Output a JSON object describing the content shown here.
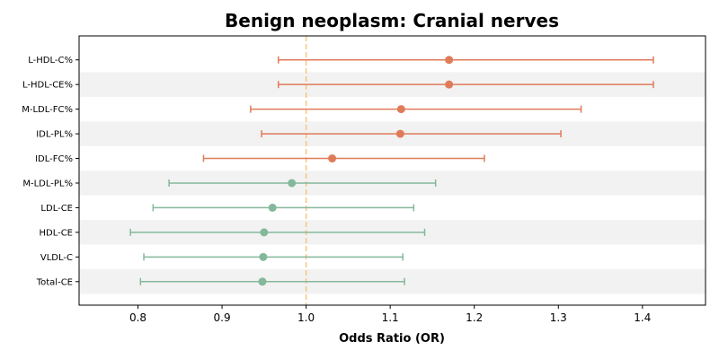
{
  "chart_data": {
    "type": "forest",
    "title": "Benign neoplasm: Cranial nerves",
    "xlabel": "Odds Ratio (OR)",
    "ylabel": "",
    "xlim": [
      0.73,
      1.475
    ],
    "xticks": [
      "0.8",
      "0.9",
      "1.0",
      "1.1",
      "1.2",
      "1.3",
      "1.4"
    ],
    "reference_line": 1.0,
    "grid": false,
    "row_shading": "alternating",
    "colors": {
      "positive": "#e07b5a",
      "negative": "#84b89b",
      "reference": "#f5c77e",
      "band": "#f2f2f2"
    },
    "rows": [
      {
        "label": "L-HDL-C%",
        "or": 1.17,
        "lower": 0.967,
        "upper": 1.413
      },
      {
        "label": "L-HDL-CE%",
        "or": 1.17,
        "lower": 0.967,
        "upper": 1.413
      },
      {
        "label": "M-LDL-FC%",
        "or": 1.113,
        "lower": 0.934,
        "upper": 1.327
      },
      {
        "label": "IDL-PL%",
        "or": 1.112,
        "lower": 0.947,
        "upper": 1.303
      },
      {
        "label": "IDL-FC%",
        "or": 1.031,
        "lower": 0.878,
        "upper": 1.212
      },
      {
        "label": "M-LDL-PL%",
        "or": 0.983,
        "lower": 0.837,
        "upper": 1.154
      },
      {
        "label": "LDL-CE",
        "or": 0.96,
        "lower": 0.818,
        "upper": 1.128
      },
      {
        "label": "HDL-CE",
        "or": 0.95,
        "lower": 0.791,
        "upper": 1.141
      },
      {
        "label": "VLDL-C",
        "or": 0.949,
        "lower": 0.807,
        "upper": 1.115
      },
      {
        "label": "Total-CE",
        "or": 0.948,
        "lower": 0.803,
        "upper": 1.117
      }
    ]
  }
}
